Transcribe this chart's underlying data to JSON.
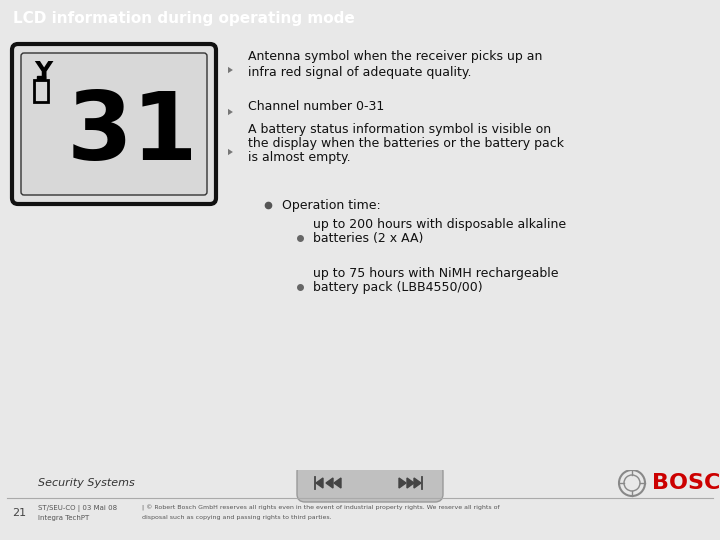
{
  "title": "LCD information during operating mode",
  "title_bg": "#1e3f63",
  "title_color": "#ffffff",
  "bg_color": "#e8e8e8",
  "slide_bg": "#f5f5f5",
  "arrow_color": "#888888",
  "bullet1_line1": "Antenna symbol when the receiver picks up an",
  "bullet1_line2": "infra red signal of adequate quality.",
  "bullet2": "Channel number 0-31",
  "bullet3_line1": "A battery status information symbol is visible on",
  "bullet3_line2": "the display when the batteries or the battery pack",
  "bullet3_line3": "is almost empty.",
  "sub_bullet1": "Operation time:",
  "sub_sub_bullet1_line1": "up to 200 hours with disposable alkaline",
  "sub_sub_bullet1_line2": "batteries (2 x AA)",
  "sub_sub_bullet2_line1": "up to 75 hours with NiMH rechargeable",
  "sub_sub_bullet2_line2": "battery pack (LBB4550/00)",
  "footer_left": "Security Systems",
  "footer_num": "21",
  "footer_small1": "ST/SEU-CO | 03 Mai 08",
  "footer_small2": "Integra TechPT",
  "footer_copy_line1": "| © Robert Bosch GmbH reserves all rights even in the event of industrial property rights. We reserve all rights of",
  "footer_copy_line2": "disposal such as copying and passing rights to third parties.",
  "bosch_color": "#cc0000",
  "lcd_text": "31",
  "title_fontsize": 11,
  "body_fontsize": 9,
  "footer_fontsize": 7,
  "footer_small_fontsize": 5
}
